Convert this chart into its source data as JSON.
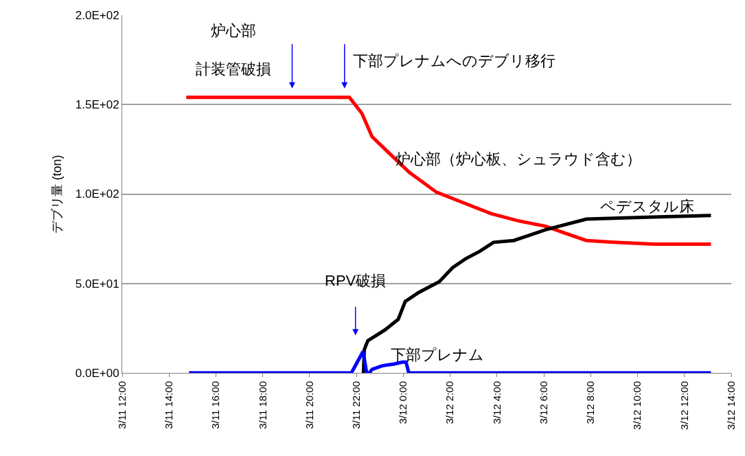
{
  "chart_data": {
    "type": "line",
    "ylabel": "デブリ量 (ton)",
    "xlim": [
      "--03-11T12:00",
      "--03-12T14:00"
    ],
    "xticks": [
      {
        "value": "--03-11T12:00",
        "label": "3/11 12:00"
      },
      {
        "value": "--03-11T14:00",
        "label": "3/11 14:00"
      },
      {
        "value": "--03-11T16:00",
        "label": "3/11 16:00"
      },
      {
        "value": "--03-11T18:00",
        "label": "3/11 18:00"
      },
      {
        "value": "--03-11T20:00",
        "label": "3/11 20:00"
      },
      {
        "value": "--03-11T22:00",
        "label": "3/11 22:00"
      },
      {
        "value": "--03-12T00:00",
        "label": "3/12 0:00"
      },
      {
        "value": "--03-12T02:00",
        "label": "3/12 2:00"
      },
      {
        "value": "--03-12T04:00",
        "label": "3/12 4:00"
      },
      {
        "value": "--03-12T06:00",
        "label": "3/12 6:00"
      },
      {
        "value": "--03-12T08:00",
        "label": "3/12 8:00"
      },
      {
        "value": "--03-12T10:00",
        "label": "3/12 10:00"
      },
      {
        "value": "--03-12T12:00",
        "label": "3/12 12:00"
      },
      {
        "value": "--03-12T14:00",
        "label": "3/12 14:00"
      }
    ],
    "ylim": [
      0,
      200
    ],
    "yticks": [
      {
        "value": 0,
        "label": "0.0E+00"
      },
      {
        "value": 50,
        "label": "5.0E+01"
      },
      {
        "value": 100,
        "label": "1.0E+02"
      },
      {
        "value": 150,
        "label": "1.5E+02"
      },
      {
        "value": 200,
        "label": "2.0E+02"
      }
    ],
    "grid": "y",
    "legend": false,
    "marker": "none",
    "line_style": "solid",
    "series": [
      {
        "name": "炉心部（炉心板、シュラウド含む）",
        "color": "#ff0000",
        "x": [
          "--03-11T14:44",
          "--03-11T21:42",
          "--03-11T22:14",
          "--03-11T22:40",
          "--03-11T23:23",
          "--03-12T00:16",
          "--03-12T01:25",
          "--03-12T02:35",
          "--03-12T03:45",
          "--03-12T04:55",
          "--03-12T06:04",
          "--03-12T06:56",
          "--03-12T07:49",
          "--03-12T08:59",
          "--03-12T10:43",
          "--03-12T13:08"
        ],
        "values": [
          154,
          154,
          145,
          132,
          123,
          112,
          101,
          95,
          89,
          85,
          82,
          78,
          74,
          73,
          72,
          72
        ]
      },
      {
        "name": "ペデスタル床",
        "color": "#000000",
        "x": [
          "--03-11T22:18",
          "--03-11T22:20",
          "--03-11T22:29",
          "--03-11T23:13",
          "--03-11T23:47",
          "--03-12T00:05",
          "--03-12T00:40",
          "--03-12T01:32",
          "--03-12T02:07",
          "--03-12T02:41",
          "--03-12T03:16",
          "--03-12T03:51",
          "--03-12T04:43",
          "--03-12T06:04",
          "--03-12T07:49",
          "--03-12T10:26",
          "--03-12T13:08"
        ],
        "values": [
          0,
          13,
          18,
          24,
          30,
          40,
          45,
          51,
          59,
          64,
          68,
          73,
          74,
          80,
          86,
          87,
          88
        ]
      },
      {
        "name": "下部プレナム",
        "color": "#0000ff",
        "x": [
          "--03-11T14:51",
          "--03-11T21:47",
          "--03-11T22:17",
          "--03-11T22:26",
          "--03-11T22:33",
          "--03-11T22:40",
          "--03-11T23:06",
          "--03-11T23:37",
          "--03-11T23:58",
          "--03-12T00:07",
          "--03-12T00:14",
          "--03-12T13:08"
        ],
        "values": [
          0,
          0,
          12,
          0,
          0,
          2,
          4,
          5,
          6,
          6,
          0,
          0
        ]
      }
    ],
    "annotations": [
      "炉心部",
      "計装管破損",
      "下部プレナムへのデブリ移行",
      "RPV破損"
    ]
  }
}
